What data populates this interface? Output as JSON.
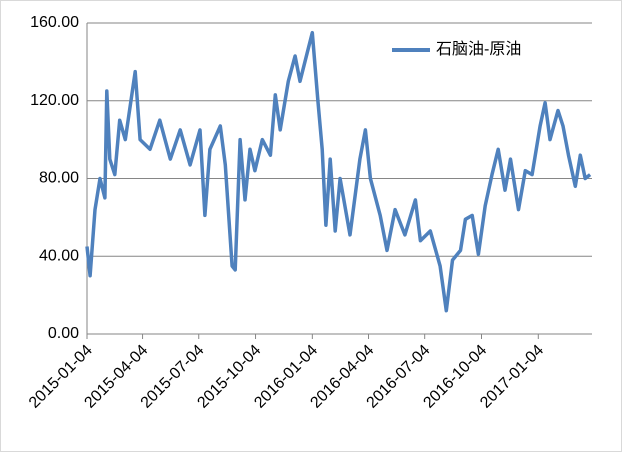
{
  "chart_data": {
    "type": "line",
    "x": [
      "2015-01-04",
      "2015-01-09",
      "2015-01-17",
      "2015-01-25",
      "2015-02-02",
      "2015-02-05",
      "2015-02-10",
      "2015-02-18",
      "2015-02-26",
      "2015-03-07",
      "2015-03-23",
      "2015-03-31",
      "2015-04-16",
      "2015-05-02",
      "2015-05-19",
      "2015-06-04",
      "2015-06-20",
      "2015-07-06",
      "2015-07-14",
      "2015-07-22",
      "2015-08-08",
      "2015-08-16",
      "2015-08-27",
      "2015-09-01",
      "2015-09-09",
      "2015-09-17",
      "2015-09-25",
      "2015-10-03",
      "2015-10-15",
      "2015-10-28",
      "2015-11-05",
      "2015-11-13",
      "2015-11-26",
      "2015-12-07",
      "2015-12-15",
      "2015-12-23",
      "2016-01-04",
      "2016-01-13",
      "2016-01-20",
      "2016-01-26",
      "2016-02-02",
      "2016-02-10",
      "2016-02-18",
      "2016-03-05",
      "2016-03-21",
      "2016-03-30",
      "2016-04-07",
      "2016-04-23",
      "2016-05-04",
      "2016-05-17",
      "2016-06-02",
      "2016-06-19",
      "2016-06-27",
      "2016-07-13",
      "2016-07-29",
      "2016-08-08",
      "2016-08-18",
      "2016-08-31",
      "2016-09-08",
      "2016-09-19",
      "2016-09-29",
      "2016-10-10",
      "2016-10-21",
      "2016-10-31",
      "2016-11-11",
      "2016-11-20",
      "2016-12-03",
      "2016-12-14",
      "2016-12-25",
      "2017-01-07",
      "2017-01-15",
      "2017-01-23",
      "2017-02-05",
      "2017-02-13",
      "2017-02-22",
      "2017-03-05",
      "2017-03-13",
      "2017-03-21",
      "2017-03-29"
    ],
    "series": [
      {
        "name": "石脑油-原油",
        "color": "#4f81bd",
        "values": [
          45,
          30,
          64,
          80,
          70,
          125,
          90,
          82,
          110,
          100,
          135,
          100,
          95,
          110,
          90,
          105,
          87,
          105,
          61,
          95,
          107,
          87,
          35,
          33,
          100,
          69,
          95,
          84,
          100,
          92,
          123,
          105,
          130,
          143,
          130,
          140,
          155,
          120,
          95,
          56,
          90,
          53,
          80,
          51,
          90,
          105,
          80,
          61,
          43,
          64,
          51,
          69,
          48,
          53,
          35,
          12,
          38,
          43,
          59,
          61,
          41,
          66,
          82,
          95,
          74,
          90,
          64,
          84,
          82,
          107,
          119,
          100,
          115,
          107,
          92,
          76,
          92,
          80,
          82
        ]
      }
    ],
    "xlim": [
      "2015-01-04",
      "2017-04-01"
    ],
    "xticks": [
      "2015-01-04",
      "2015-04-04",
      "2015-07-04",
      "2015-10-04",
      "2016-01-04",
      "2016-04-04",
      "2016-07-04",
      "2016-10-04",
      "2017-01-04"
    ],
    "ylim": [
      0,
      160
    ],
    "yticks": [
      {
        "value": 0,
        "label": "0.00"
      },
      {
        "value": 40,
        "label": "40.00"
      },
      {
        "value": 80,
        "label": "80.00"
      },
      {
        "value": 120,
        "label": "120.00"
      },
      {
        "value": 160,
        "label": "160.00"
      }
    ],
    "grid": true,
    "legend": "top-right"
  }
}
